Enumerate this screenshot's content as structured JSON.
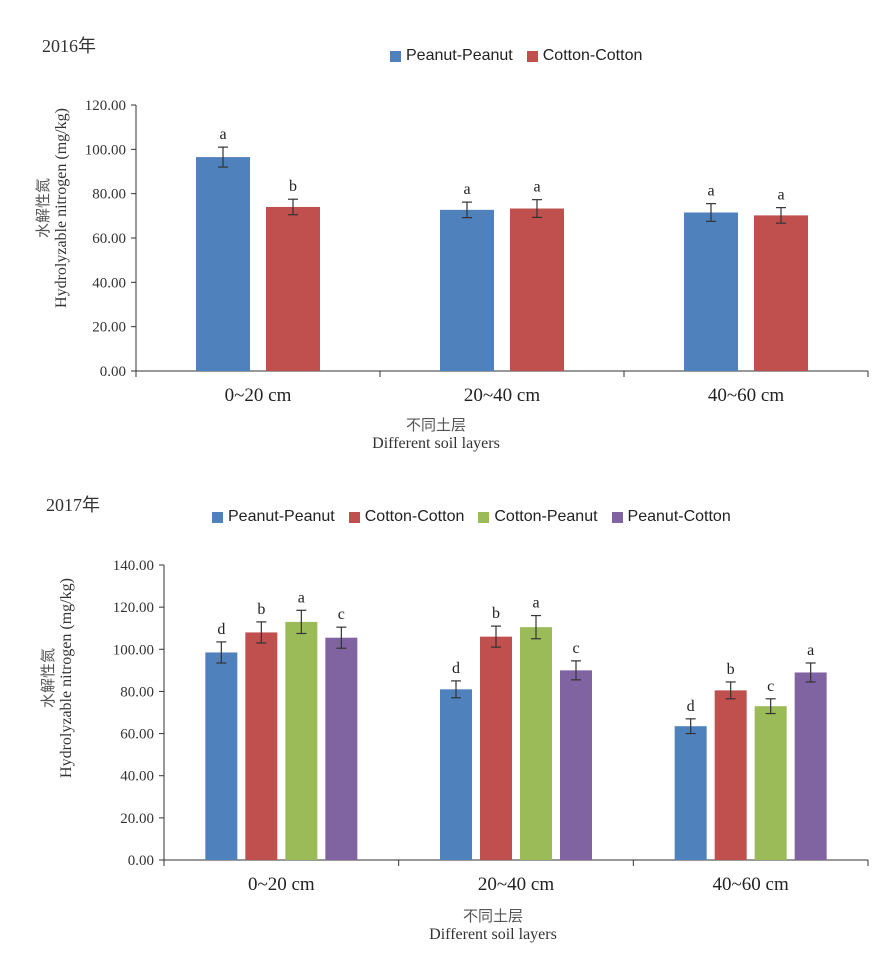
{
  "chart_data": [
    {
      "type": "bar",
      "title": "2016年",
      "categories": [
        "0~20 cm",
        "20~40 cm",
        "40~60 cm"
      ],
      "series": [
        {
          "name": "Peanut-Peanut",
          "color": "#4F81BD",
          "values": [
            96.5,
            72.7,
            71.5
          ],
          "errors": [
            4.5,
            3.5,
            4.0
          ],
          "letters": [
            "a",
            "a",
            "a"
          ]
        },
        {
          "name": "Cotton-Cotton",
          "color": "#C0504D",
          "values": [
            74.0,
            73.3,
            70.2
          ],
          "errors": [
            3.5,
            4.0,
            3.5
          ],
          "letters": [
            "b",
            "a",
            "a"
          ]
        }
      ],
      "ylabel_cn": "水解性氮",
      "ylabel": "Hydrolyzable nitrogen (mg/kg)",
      "xlabel_cn": "不同土层",
      "xlabel": "Different soil layers",
      "ylim": [
        0,
        120
      ],
      "yticks": [
        "0.00",
        "20.00",
        "40.00",
        "60.00",
        "80.00",
        "100.00",
        "120.00"
      ],
      "grid": false,
      "legend": "top"
    },
    {
      "type": "bar",
      "title": "2017年",
      "categories": [
        "0~20 cm",
        "20~40 cm",
        "40~60 cm"
      ],
      "series": [
        {
          "name": "Peanut-Peanut",
          "color": "#4F81BD",
          "values": [
            98.5,
            81.0,
            63.5
          ],
          "errors": [
            5.0,
            4.0,
            3.5
          ],
          "letters": [
            "d",
            "d",
            "d"
          ]
        },
        {
          "name": "Cotton-Cotton",
          "color": "#C0504D",
          "values": [
            108.0,
            106.0,
            80.5
          ],
          "errors": [
            5.0,
            5.0,
            4.0
          ],
          "letters": [
            "b",
            "b",
            "b"
          ]
        },
        {
          "name": "Cotton-Peanut",
          "color": "#9BBB59",
          "values": [
            113.0,
            110.5,
            73.0
          ],
          "errors": [
            5.5,
            5.5,
            3.5
          ],
          "letters": [
            "a",
            "a",
            "c"
          ]
        },
        {
          "name": "Peanut-Cotton",
          "color": "#8064A2",
          "values": [
            105.5,
            90.0,
            89.0
          ],
          "errors": [
            5.0,
            4.5,
            4.5
          ],
          "letters": [
            "c",
            "c",
            "a"
          ]
        }
      ],
      "ylabel_cn": "水解性氮",
      "ylabel": "Hydrolyzable nitrogen (mg/kg)",
      "xlabel_cn": "不同土层",
      "xlabel": "Different soil layers",
      "ylim": [
        0,
        140
      ],
      "yticks": [
        "0.00",
        "20.00",
        "40.00",
        "60.00",
        "80.00",
        "100.00",
        "120.00",
        "140.00"
      ],
      "grid": false,
      "legend": "top"
    }
  ]
}
